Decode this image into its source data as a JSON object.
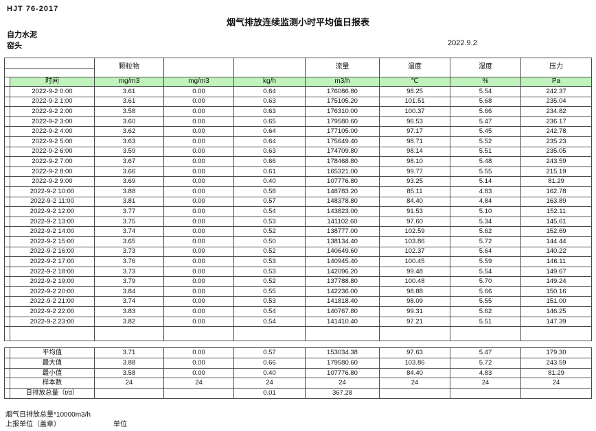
{
  "page": {
    "doc_code": "HJT  76-2017",
    "title": "烟气排放连续监测小时平均值日报表",
    "company": "自力水泥",
    "location": "窑头",
    "date": "2022.9.2"
  },
  "table": {
    "group_headers": [
      "颗粒物",
      "",
      "",
      "流量",
      "温度",
      "湿度",
      "压力"
    ],
    "unit_row": [
      "时间",
      "mg/m3",
      "mg/m3",
      "kg/h",
      "m3/h",
      "℃",
      "%",
      "Pa"
    ],
    "rows": [
      [
        "2022-9-2 0:00",
        "3.61",
        "0.00",
        "0.64",
        "176086.80",
        "98.25",
        "5.54",
        "242.37"
      ],
      [
        "2022-9-2 1:00",
        "3.61",
        "0.00",
        "0.63",
        "175105.20",
        "101.51",
        "5.68",
        "235.04"
      ],
      [
        "2022-9-2 2:00",
        "3.58",
        "0.00",
        "0.63",
        "176310.00",
        "100.37",
        "5.66",
        "234.82"
      ],
      [
        "2022-9-2 3:00",
        "3.60",
        "0.00",
        "0.65",
        "179580.60",
        "96.53",
        "5.47",
        "236.17"
      ],
      [
        "2022-9-2 4:00",
        "3.62",
        "0.00",
        "0.64",
        "177105.00",
        "97.17",
        "5.45",
        "242.78"
      ],
      [
        "2022-9-2 5:00",
        "3.63",
        "0.00",
        "0.64",
        "175649.40",
        "98.71",
        "5.52",
        "235.23"
      ],
      [
        "2022-9-2 6:00",
        "3.59",
        "0.00",
        "0.63",
        "174709.80",
        "98.14",
        "5.51",
        "235.05"
      ],
      [
        "2022-9-2 7:00",
        "3.67",
        "0.00",
        "0.66",
        "178468.80",
        "98.10",
        "5.48",
        "243.59"
      ],
      [
        "2022-9-2 8:00",
        "3.66",
        "0.00",
        "0.61",
        "165321.00",
        "99.77",
        "5.55",
        "215.19"
      ],
      [
        "2022-9-2 9:00",
        "3.69",
        "0.00",
        "0.40",
        "107776.80",
        "93.25",
        "5.14",
        "81.29"
      ],
      [
        "2022-9-2 10:00",
        "3.88",
        "0.00",
        "0.58",
        "148783.20",
        "85.11",
        "4.83",
        "162.78"
      ],
      [
        "2022-9-2 11:00",
        "3.81",
        "0.00",
        "0.57",
        "148378.80",
        "84.40",
        "4.84",
        "163.89"
      ],
      [
        "2022-9-2 12:00",
        "3.77",
        "0.00",
        "0.54",
        "143823.00",
        "91.53",
        "5.10",
        "152.11"
      ],
      [
        "2022-9-2 13:00",
        "3.75",
        "0.00",
        "0.53",
        "141102.60",
        "97.60",
        "5.34",
        "145.61"
      ],
      [
        "2022-9-2 14:00",
        "3.74",
        "0.00",
        "0.52",
        "138777.00",
        "102.59",
        "5.62",
        "152.69"
      ],
      [
        "2022-9-2 15:00",
        "3.65",
        "0.00",
        "0.50",
        "138134.40",
        "103.86",
        "5.72",
        "144.44"
      ],
      [
        "2022-9-2 16:00",
        "3.73",
        "0.00",
        "0.52",
        "140649.60",
        "102.37",
        "5.64",
        "140.22"
      ],
      [
        "2022-9-2 17:00",
        "3.76",
        "0.00",
        "0.53",
        "140945.40",
        "100.45",
        "5.59",
        "146.11"
      ],
      [
        "2022-9-2 18:00",
        "3.73",
        "0.00",
        "0.53",
        "142096.20",
        "99.48",
        "5.54",
        "149.67"
      ],
      [
        "2022-9-2 19:00",
        "3.79",
        "0.00",
        "0.52",
        "137788.80",
        "100.48",
        "5.70",
        "149.24"
      ],
      [
        "2022-9-2 20:00",
        "3.84",
        "0.00",
        "0.55",
        "142236.00",
        "98.88",
        "5.66",
        "150.16"
      ],
      [
        "2022-9-2 21:00",
        "3.74",
        "0.00",
        "0.53",
        "141818.40",
        "98.09",
        "5.55",
        "151.00"
      ],
      [
        "2022-9-2 22:00",
        "3.83",
        "0.00",
        "0.54",
        "140767.80",
        "99.31",
        "5.62",
        "146.25"
      ],
      [
        "2022-9-2 23:00",
        "3.82",
        "0.00",
        "0.54",
        "141410.40",
        "97.21",
        "5.51",
        "147.39"
      ]
    ]
  },
  "summary": {
    "rows": [
      [
        "平均值",
        "3.71",
        "0.00",
        "0.57",
        "153034.38",
        "97.63",
        "5.47",
        "179.30"
      ],
      [
        "最大值",
        "3.88",
        "0.00",
        "0.66",
        "179580.60",
        "103.86",
        "5.72",
        "243.59"
      ],
      [
        "最小值",
        "3.58",
        "0.00",
        "0.40",
        "107776.80",
        "84.40",
        "4.83",
        "81.29"
      ],
      [
        "样本数",
        "24",
        "24",
        "24",
        "24",
        "24",
        "24",
        "24"
      ],
      [
        "日排放总量（t/d）",
        "",
        "",
        "0.01",
        "367.28",
        "",
        "",
        ""
      ]
    ]
  },
  "footer": {
    "note": "烟气日排放总量*10000m3/h",
    "report_unit_label": "上报单位（盖章）",
    "unit_label": "单位"
  },
  "colors": {
    "header_green": "#c0f2bc"
  }
}
